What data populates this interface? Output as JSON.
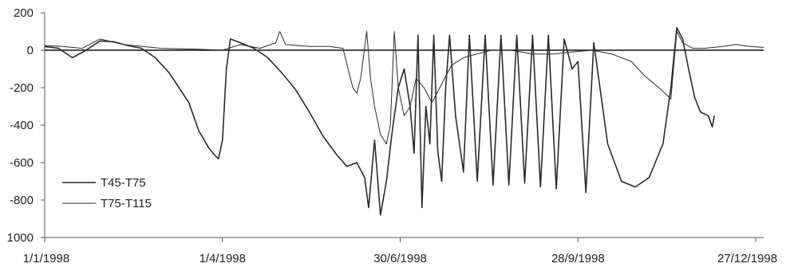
{
  "chart_data": {
    "type": "line",
    "title": "",
    "xlabel": "",
    "ylabel": "",
    "ylim": [
      200,
      1000
    ],
    "y_axis_direction": "downward-negative",
    "yticks": [
      200,
      0,
      -200,
      -400,
      -600,
      -800,
      1000
    ],
    "ytick_labels": [
      "200",
      "0",
      "-200",
      "-400",
      "-600",
      "-800",
      "1000"
    ],
    "xlim": [
      "1/1/1998",
      "31/12/1998"
    ],
    "xticks": [
      "1/1/1998",
      "1/4/1998",
      "30/6/1998",
      "28/9/1998",
      "27/12/1998"
    ],
    "grid": false,
    "zero_line": true,
    "legend_position": "lower-left",
    "colors": {
      "line": "#2a2a2a",
      "axis": "#555555",
      "zero_line": "#111111"
    },
    "series": [
      {
        "name": "T45-T75",
        "points": [
          [
            "1/1/1998",
            20
          ],
          [
            "8/1/1998",
            10
          ],
          [
            "15/1/1998",
            -40
          ],
          [
            "22/1/1998",
            0
          ],
          [
            "29/1/1998",
            50
          ],
          [
            "5/2/1998",
            45
          ],
          [
            "12/2/1998",
            25
          ],
          [
            "19/2/1998",
            10
          ],
          [
            "26/2/1998",
            -40
          ],
          [
            "5/3/1998",
            -120
          ],
          [
            "10/3/1998",
            -200
          ],
          [
            "15/3/1998",
            -280
          ],
          [
            "20/3/1998",
            -430
          ],
          [
            "25/3/1998",
            -520
          ],
          [
            "28/3/1998",
            -560
          ],
          [
            "30/3/1998",
            -580
          ],
          [
            "1/4/1998",
            -480
          ],
          [
            "3/4/1998",
            -100
          ],
          [
            "5/4/1998",
            60
          ],
          [
            "10/4/1998",
            40
          ],
          [
            "17/4/1998",
            10
          ],
          [
            "24/4/1998",
            -40
          ],
          [
            "1/5/1998",
            -120
          ],
          [
            "8/5/1998",
            -210
          ],
          [
            "15/5/1998",
            -330
          ],
          [
            "22/5/1998",
            -460
          ],
          [
            "29/5/1998",
            -560
          ],
          [
            "3/6/1998",
            -620
          ],
          [
            "8/6/1998",
            -600
          ],
          [
            "12/6/1998",
            -680
          ],
          [
            "14/6/1998",
            -840
          ],
          [
            "17/6/1998",
            -480
          ],
          [
            "20/6/1998",
            -880
          ],
          [
            "23/6/1998",
            -700
          ],
          [
            "26/6/1998",
            -430
          ],
          [
            "29/6/1998",
            -200
          ],
          [
            "2/7/1998",
            -100
          ],
          [
            "5/7/1998",
            -300
          ],
          [
            "7/7/1998",
            -550
          ],
          [
            "9/7/1998",
            80
          ],
          [
            "11/7/1998",
            -840
          ],
          [
            "13/7/1998",
            -300
          ],
          [
            "15/7/1998",
            -500
          ],
          [
            "17/7/1998",
            80
          ],
          [
            "19/7/1998",
            -540
          ],
          [
            "21/7/1998",
            -700
          ],
          [
            "23/7/1998",
            -200
          ],
          [
            "25/7/1998",
            80
          ],
          [
            "28/7/1998",
            -350
          ],
          [
            "1/8/1998",
            -650
          ],
          [
            "4/8/1998",
            80
          ],
          [
            "8/8/1998",
            -700
          ],
          [
            "12/8/1998",
            80
          ],
          [
            "16/8/1998",
            -720
          ],
          [
            "20/8/1998",
            80
          ],
          [
            "24/8/1998",
            -720
          ],
          [
            "28/8/1998",
            80
          ],
          [
            "1/9/1998",
            -710
          ],
          [
            "5/9/1998",
            80
          ],
          [
            "9/9/1998",
            -730
          ],
          [
            "13/9/1998",
            80
          ],
          [
            "17/9/1998",
            -740
          ],
          [
            "21/9/1998",
            60
          ],
          [
            "25/9/1998",
            -100
          ],
          [
            "28/9/1998",
            -60
          ],
          [
            "2/10/1998",
            -760
          ],
          [
            "6/10/1998",
            40
          ],
          [
            "13/10/1998",
            -500
          ],
          [
            "20/10/1998",
            -700
          ],
          [
            "27/10/1998",
            -730
          ],
          [
            "3/11/1998",
            -680
          ],
          [
            "10/11/1998",
            -500
          ],
          [
            "14/11/1998",
            -200
          ],
          [
            "17/11/1998",
            120
          ],
          [
            "20/11/1998",
            60
          ],
          [
            "23/11/1998",
            -100
          ],
          [
            "26/11/1998",
            -250
          ],
          [
            "29/11/1998",
            -330
          ],
          [
            "3/12/1998",
            -350
          ],
          [
            "5/12/1998",
            -410
          ],
          [
            "6/12/1998",
            -350
          ]
        ]
      },
      {
        "name": "T75-T115",
        "points": [
          [
            "1/1/1998",
            25
          ],
          [
            "10/1/1998",
            20
          ],
          [
            "20/1/1998",
            10
          ],
          [
            "29/1/1998",
            60
          ],
          [
            "10/2/1998",
            30
          ],
          [
            "1/3/1998",
            10
          ],
          [
            "20/3/1998",
            5
          ],
          [
            "1/4/1998",
            0
          ],
          [
            "10/4/1998",
            30
          ],
          [
            "20/4/1998",
            10
          ],
          [
            "28/4/1998",
            40
          ],
          [
            "30/4/1998",
            100
          ],
          [
            "3/5/1998",
            30
          ],
          [
            "15/5/1998",
            20
          ],
          [
            "25/5/1998",
            20
          ],
          [
            "1/6/1998",
            10
          ],
          [
            "6/6/1998",
            -200
          ],
          [
            "8/6/1998",
            -230
          ],
          [
            "10/6/1998",
            -150
          ],
          [
            "13/6/1998",
            100
          ],
          [
            "15/6/1998",
            -150
          ],
          [
            "17/6/1998",
            -300
          ],
          [
            "20/6/1998",
            -450
          ],
          [
            "23/6/1998",
            -500
          ],
          [
            "25/6/1998",
            -400
          ],
          [
            "27/6/1998",
            100
          ],
          [
            "29/6/1998",
            -200
          ],
          [
            "2/7/1998",
            -350
          ],
          [
            "5/7/1998",
            -300
          ],
          [
            "8/7/1998",
            -150
          ],
          [
            "12/7/1998",
            -200
          ],
          [
            "16/7/1998",
            -280
          ],
          [
            "20/7/1998",
            -200
          ],
          [
            "26/7/1998",
            -80
          ],
          [
            "1/8/1998",
            -40
          ],
          [
            "8/8/1998",
            -20
          ],
          [
            "15/8/1998",
            0
          ],
          [
            "25/8/1998",
            0
          ],
          [
            "5/9/1998",
            -20
          ],
          [
            "15/9/1998",
            -20
          ],
          [
            "25/9/1998",
            -10
          ],
          [
            "5/10/1998",
            0
          ],
          [
            "15/10/1998",
            -20
          ],
          [
            "25/10/1998",
            -60
          ],
          [
            "1/11/1998",
            -140
          ],
          [
            "8/11/1998",
            -200
          ],
          [
            "14/11/1998",
            -260
          ],
          [
            "17/11/1998",
            100
          ],
          [
            "20/11/1998",
            40
          ],
          [
            "25/11/1998",
            10
          ],
          [
            "1/12/1998",
            10
          ],
          [
            "10/12/1998",
            20
          ],
          [
            "17/12/1998",
            30
          ],
          [
            "24/12/1998",
            20
          ],
          [
            "31/12/1998",
            15
          ]
        ]
      }
    ]
  }
}
